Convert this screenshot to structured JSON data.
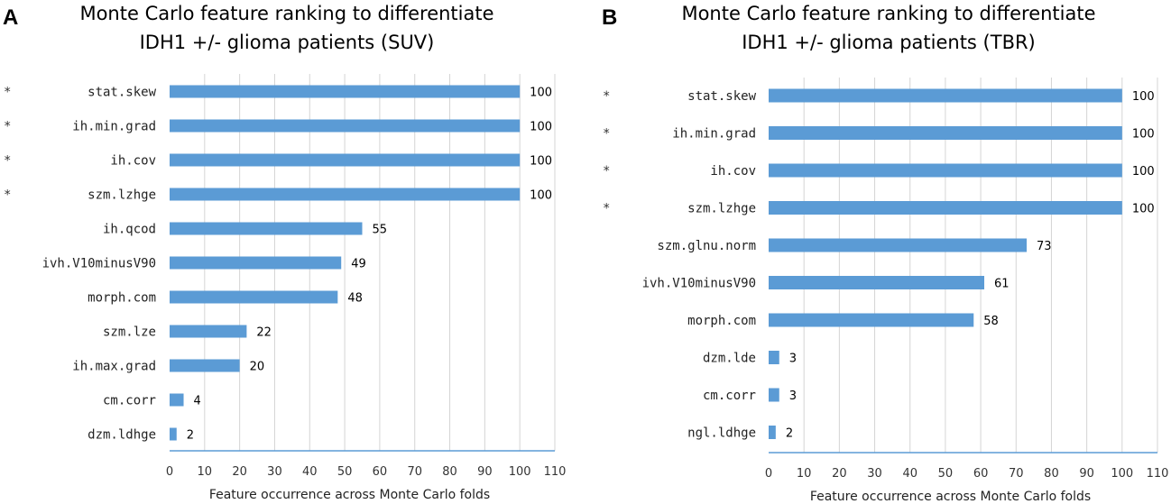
{
  "figure": {
    "description_panels": [
      "A",
      "B"
    ]
  },
  "chart_data": [
    {
      "panel": "A",
      "type": "bar",
      "orientation": "horizontal",
      "title_lines": [
        "Monte Carlo feature ranking to differentiate",
        "IDH1 +/- glioma patients (SUV)"
      ],
      "xlabel": "Feature occurrence across Monte Carlo folds",
      "ylabel": "",
      "xlim": [
        0,
        110
      ],
      "xticks": [
        0,
        10,
        20,
        30,
        40,
        50,
        60,
        70,
        80,
        90,
        100,
        110
      ],
      "grid": true,
      "bar_color": "#5b9bd5",
      "significance_marker": "*",
      "categories": [
        "stat.skew",
        "ih.min.grad",
        "ih.cov",
        "szm.lzhge",
        "ih.qcod",
        "ivh.V10minusV90",
        "morph.com",
        "szm.lze",
        "ih.max.grad",
        "cm.corr",
        "dzm.ldhge"
      ],
      "values": [
        100,
        100,
        100,
        100,
        55,
        49,
        48,
        22,
        20,
        4,
        2
      ],
      "significant": [
        true,
        true,
        true,
        true,
        false,
        false,
        false,
        false,
        false,
        false,
        false
      ]
    },
    {
      "panel": "B",
      "type": "bar",
      "orientation": "horizontal",
      "title_lines": [
        "Monte Carlo feature ranking to differentiate",
        "IDH1 +/- glioma patients (TBR)"
      ],
      "xlabel": "Feature occurrence across Monte Carlo folds",
      "ylabel": "",
      "xlim": [
        0,
        110
      ],
      "xticks": [
        0,
        10,
        20,
        30,
        40,
        50,
        60,
        70,
        80,
        90,
        100,
        110
      ],
      "grid": true,
      "bar_color": "#5b9bd5",
      "significance_marker": "*",
      "categories": [
        "stat.skew",
        "ih.min.grad",
        "ih.cov",
        "szm.lzhge",
        "szm.glnu.norm",
        "ivh.V10minusV90",
        "morph.com",
        "dzm.lde",
        "cm.corr",
        "ngl.ldhge"
      ],
      "values": [
        100,
        100,
        100,
        100,
        73,
        61,
        58,
        3,
        3,
        2
      ],
      "significant": [
        true,
        true,
        true,
        true,
        false,
        false,
        false,
        false,
        false,
        false
      ]
    }
  ]
}
